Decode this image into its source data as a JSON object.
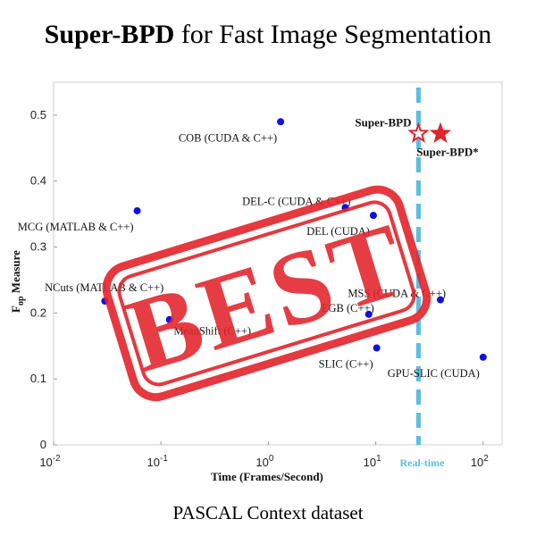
{
  "header": {
    "title_bold": "Super-BPD",
    "title_rest": " for Fast Image Segmentation"
  },
  "caption": "PASCAL Context dataset",
  "stamp": {
    "text": "BEST",
    "color": "#e2232a"
  },
  "colors": {
    "points": "#1010e0",
    "stars": "#e2232a",
    "realtime_line": "#5bbde4"
  },
  "chart_data": {
    "type": "scatter",
    "xlabel": "Time (Frames/Second)",
    "ylabel_main": "F",
    "ylabel_sub": "op",
    "ylabel_rest": " Measure",
    "x_scale": "log",
    "xlim": [
      0.01,
      150
    ],
    "ylim": [
      0,
      0.55
    ],
    "x_ticks": [
      {
        "value": 0.01,
        "base": "10",
        "exp": "-2"
      },
      {
        "value": 0.1,
        "base": "10",
        "exp": "-1"
      },
      {
        "value": 1,
        "base": "10",
        "exp": "0"
      },
      {
        "value": 10,
        "base": "10",
        "exp": "1"
      },
      {
        "value": 100,
        "base": "10",
        "exp": "2"
      }
    ],
    "y_ticks": [
      {
        "value": 0,
        "label": "0"
      },
      {
        "value": 0.1,
        "label": "0.1"
      },
      {
        "value": 0.2,
        "label": "0.2"
      },
      {
        "value": 0.3,
        "label": "0.3"
      },
      {
        "value": 0.4,
        "label": "0.4"
      },
      {
        "value": 0.5,
        "label": "0.5"
      }
    ],
    "realtime": {
      "x": 25,
      "label": "Real-time"
    },
    "points": [
      {
        "label": "COB (CUDA & C++)",
        "x": 1.3,
        "y": 0.49,
        "label_pos": "left-below"
      },
      {
        "label": "MCG (MATLAB & C++)",
        "x": 0.06,
        "y": 0.355,
        "label_pos": "left-below"
      },
      {
        "label": "DEL-C (CUDA & C++)",
        "x": 5.2,
        "y": 0.36,
        "label_pos": "left-above"
      },
      {
        "label": "DEL (CUDA)",
        "x": 9.5,
        "y": 0.348,
        "label_pos": "left-below"
      },
      {
        "label": "NCuts (MATLAB & C++)",
        "x": 0.03,
        "y": 0.218,
        "label_pos": "left"
      },
      {
        "label": "MeanShift (C++)",
        "x": 0.12,
        "y": 0.19,
        "label_pos": "center-below"
      },
      {
        "label": "EGB (C++)",
        "x": 8.6,
        "y": 0.198,
        "label_pos": "left-above"
      },
      {
        "label": "SLIC (C++)",
        "x": 10.2,
        "y": 0.147,
        "label_pos": "left-below"
      },
      {
        "label": "GPU-SLIC (CUDA)",
        "x": 100,
        "y": 0.133,
        "label_pos": "left-below"
      },
      {
        "label": "MSS (CUDA & C++)",
        "x": 40,
        "y": 0.22,
        "label_pos": "left-above"
      }
    ],
    "stars": [
      {
        "label": "Super-BPD",
        "x": 25,
        "y": 0.472,
        "filled": false,
        "label_pos": "left"
      },
      {
        "label": "Super-BPD*",
        "x": 40,
        "y": 0.472,
        "filled": true,
        "label_pos": "below"
      }
    ]
  }
}
